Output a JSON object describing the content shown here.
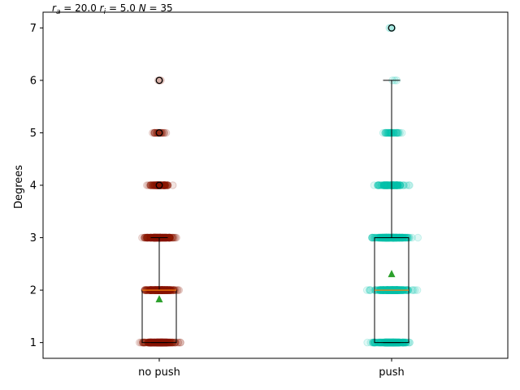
{
  "chart_data": {
    "type": "box",
    "subtitle": "r_a = 20.0 r_i = 5.0 N = 35",
    "ylabel": "Degrees",
    "xlabel": "",
    "categories": [
      "no push",
      "push"
    ],
    "ylim": [
      0.7,
      7.3
    ],
    "yticks": [
      1,
      2,
      3,
      4,
      5,
      6,
      7
    ],
    "grid": false,
    "colors": {
      "no push": "#8b1500",
      "push": "#00c4aa",
      "mean_marker": "#2ca02c",
      "median": "#ff7f0e"
    },
    "series": [
      {
        "category": "no push",
        "q1": 1,
        "median": 2,
        "q3": 2,
        "whisker_low": 1,
        "whisker_high": 3,
        "mean": 1.83,
        "outliers": [
          4,
          5,
          6
        ],
        "value_levels": [
          1,
          2,
          3,
          4,
          5,
          6
        ]
      },
      {
        "category": "push",
        "q1": 1,
        "median": 2,
        "q3": 3,
        "whisker_low": 1,
        "whisker_high": 6,
        "mean": 2.31,
        "outliers": [
          7
        ],
        "value_levels": [
          1,
          2,
          3,
          4,
          5,
          6,
          7
        ]
      }
    ]
  }
}
